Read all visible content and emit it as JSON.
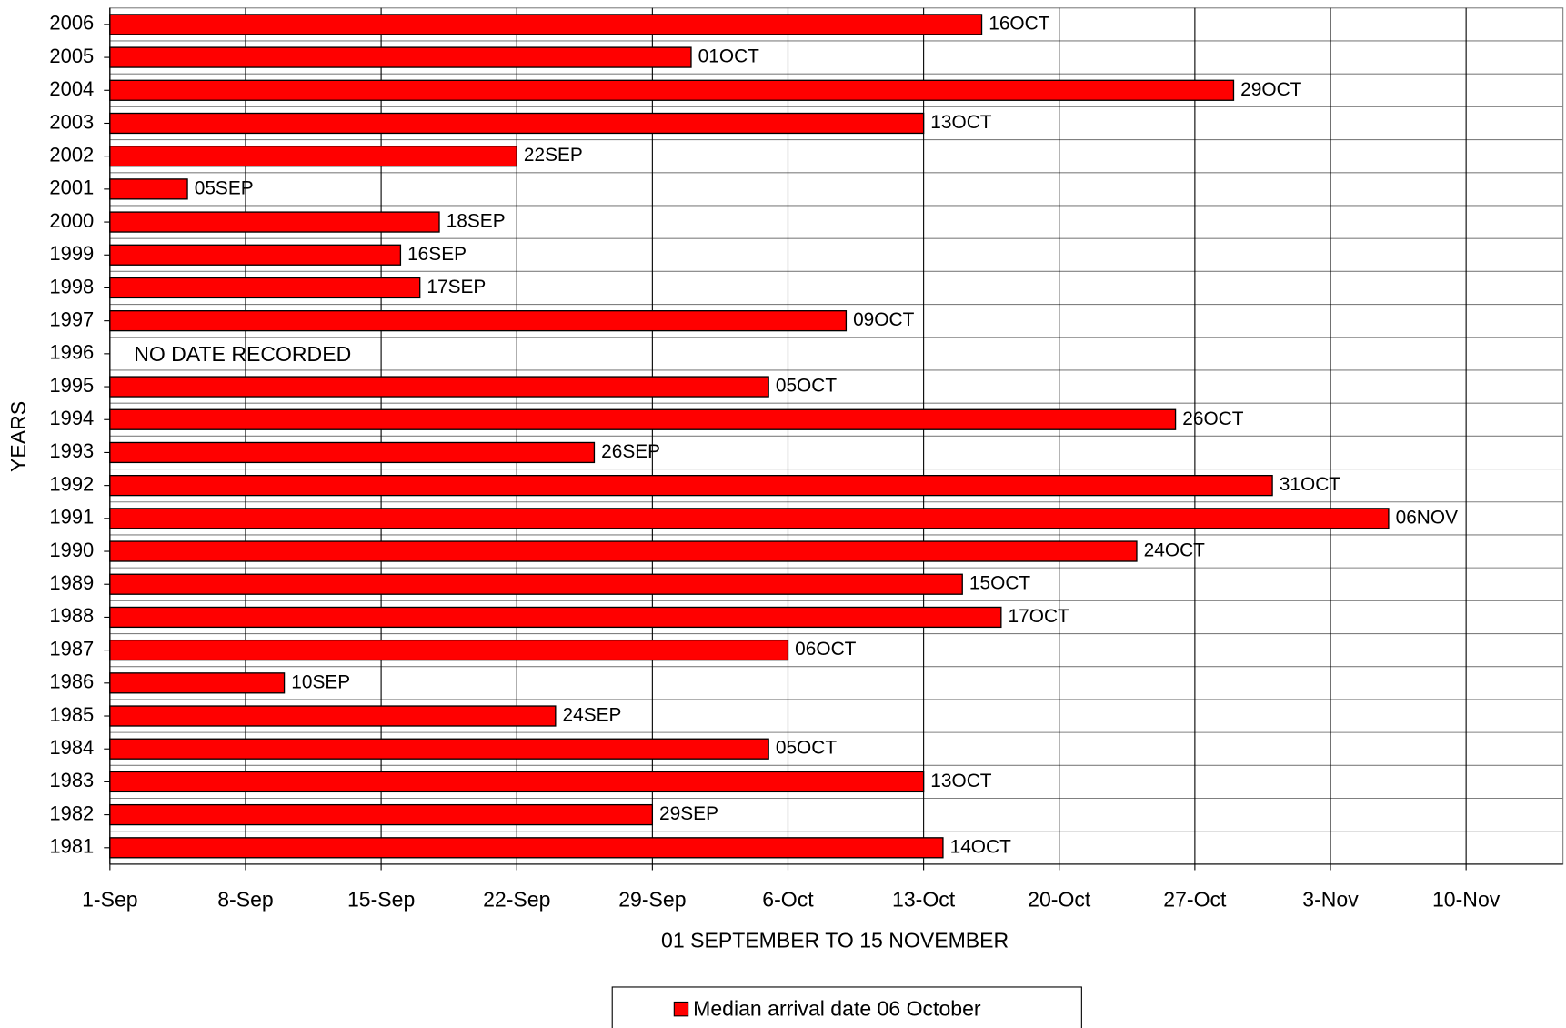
{
  "chart_data": {
    "type": "barh",
    "categories": [
      "2006",
      "2005",
      "2004",
      "2003",
      "2002",
      "2001",
      "2000",
      "1999",
      "1998",
      "1997",
      "1996",
      "1995",
      "1994",
      "1993",
      "1992",
      "1991",
      "1990",
      "1989",
      "1988",
      "1987",
      "1986",
      "1985",
      "1984",
      "1983",
      "1982",
      "1981"
    ],
    "series": [
      {
        "name": "Median arrival date 06 October",
        "color": "#ff0000",
        "values": [
          45,
          30,
          58,
          42,
          21,
          4,
          17,
          15,
          16,
          38,
          null,
          34,
          55,
          25,
          60,
          66,
          53,
          44,
          46,
          35,
          9,
          23,
          34,
          42,
          28,
          43
        ],
        "value_labels": [
          "16OCT",
          "01OCT",
          "29OCT",
          "13OCT",
          "22SEP",
          "05SEP",
          "18SEP",
          "16SEP",
          "17SEP",
          "09OCT",
          null,
          "05OCT",
          "26OCT",
          "26SEP",
          "31OCT",
          "06NOV",
          "24OCT",
          "15OCT",
          "17OCT",
          "06OCT",
          "10SEP",
          "24SEP",
          "05OCT",
          "13OCT",
          "29SEP",
          "14OCT"
        ]
      }
    ],
    "annotation": "NO DATE RECORDED",
    "xlabel": "01 SEPTEMBER TO 15 NOVEMBER",
    "ylabel": "YEARS",
    "xlim": [
      0,
      75
    ],
    "xticks": [
      {
        "value": 0,
        "label": "1-Sep"
      },
      {
        "value": 7,
        "label": "8-Sep"
      },
      {
        "value": 14,
        "label": "15-Sep"
      },
      {
        "value": 21,
        "label": "22-Sep"
      },
      {
        "value": 28,
        "label": "29-Sep"
      },
      {
        "value": 35,
        "label": "6-Oct"
      },
      {
        "value": 42,
        "label": "13-Oct"
      },
      {
        "value": 49,
        "label": "20-Oct"
      },
      {
        "value": 56,
        "label": "27-Oct"
      },
      {
        "value": 63,
        "label": "3-Nov"
      },
      {
        "value": 70,
        "label": "10-Nov"
      }
    ],
    "grid": true,
    "legend": "bottom"
  }
}
